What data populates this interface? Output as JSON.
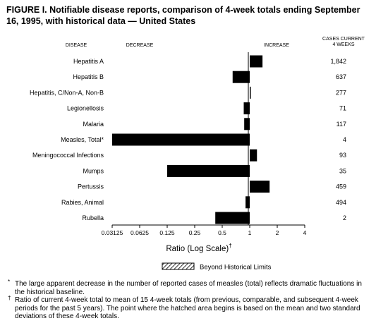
{
  "chart_data": {
    "type": "bar",
    "title": "FIGURE I. Notifiable disease reports, comparison of 4-week totals ending September 16, 1995, with historical data — United States",
    "column_headers": {
      "disease": "DISEASE",
      "decrease": "DECREASE",
      "increase": "INCREASE",
      "cases": "CASES CURRENT\n4 WEEKS"
    },
    "categories": [
      "Hepatitis A",
      "Hepatitis B",
      "Hepatitis, C/Non-A, Non-B",
      "Legionellosis",
      "Malaria",
      "Measles, Total*",
      "Meningococcal Infections",
      "Mumps",
      "Pertussis",
      "Rabies, Animal",
      "Rubella"
    ],
    "values": [
      1.38,
      0.65,
      1.02,
      0.86,
      0.87,
      0.03125,
      1.2,
      0.125,
      1.65,
      0.9,
      0.42
    ],
    "cases_current_4_weeks": [
      "1,842",
      "637",
      "277",
      "71",
      "117",
      "4",
      "93",
      "35",
      "459",
      "494",
      "2"
    ],
    "x_scale": "log2",
    "x_ticks": [
      0.03125,
      0.0625,
      0.125,
      0.25,
      0.5,
      1,
      2,
      4
    ],
    "x_tick_labels": [
      "0.03125",
      "0.0625",
      "0.125",
      "0.25",
      "0.5",
      "1",
      "2",
      "4"
    ],
    "xlim": [
      0.03125,
      4
    ],
    "baseline": 1,
    "xlabel": "Ratio (Log Scale)",
    "xlabel_mark": "†",
    "legend": {
      "label": "Beyond Historical Limits",
      "placement": "bottom-center"
    },
    "grid": false,
    "bar_color": "#000000"
  },
  "footnotes": [
    {
      "mark": "*",
      "text": "The large apparent decrease in the number of reported cases of measles (total) reflects dramatic fluctuations in the historical baseline."
    },
    {
      "mark": "†",
      "text": "Ratio of current 4-week total to mean of 15 4-week totals (from previous, comparable, and subsequent 4-week periods for the past 5 years). The point where the hatched area begins is based on the mean and two standard deviations of these 4-week totals."
    }
  ]
}
